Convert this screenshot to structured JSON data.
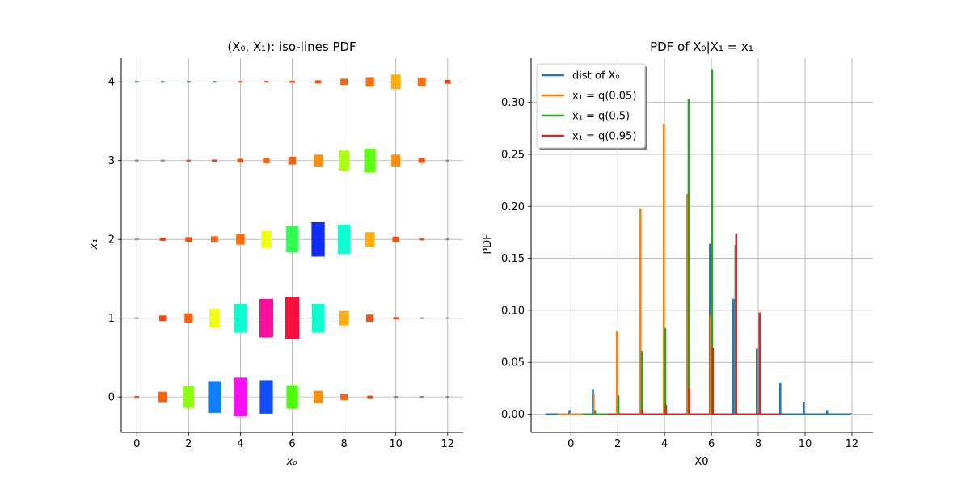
{
  "chart_data": [
    {
      "type": "heatmap",
      "title": "(X₀, X₁): iso-lines PDF",
      "xlabel": "x₀",
      "ylabel": "x₁",
      "xlim": [
        -0.6,
        12.6
      ],
      "ylim": [
        -0.45,
        4.3
      ],
      "xticks": [
        0,
        2,
        4,
        6,
        8,
        10,
        12
      ],
      "yticks": [
        0,
        1,
        2,
        3,
        4
      ],
      "grid": true,
      "cells": [
        {
          "x": 0,
          "y": 0,
          "v": 0.004,
          "color": "#ff3a00"
        },
        {
          "x": 1,
          "y": 0,
          "v": 0.06,
          "color": "#ff5a00"
        },
        {
          "x": 2,
          "y": 0,
          "v": 0.13,
          "color": "#88ff00"
        },
        {
          "x": 3,
          "y": 0,
          "v": 0.19,
          "color": "#0077ff"
        },
        {
          "x": 4,
          "y": 0,
          "v": 0.23,
          "color": "#ff00ff"
        },
        {
          "x": 5,
          "y": 0,
          "v": 0.2,
          "color": "#0044ff"
        },
        {
          "x": 6,
          "y": 0,
          "v": 0.14,
          "color": "#44ff00"
        },
        {
          "x": 7,
          "y": 0,
          "v": 0.07,
          "color": "#ff8800"
        },
        {
          "x": 8,
          "y": 0,
          "v": 0.035,
          "color": "#ff5a00"
        },
        {
          "x": 9,
          "y": 0,
          "v": 0.012,
          "color": "#ff3a00"
        },
        {
          "x": 10,
          "y": 0,
          "v": 0.002,
          "color": "#888888"
        },
        {
          "x": 11,
          "y": 0,
          "v": 0.001,
          "color": "#888888"
        },
        {
          "x": 12,
          "y": 0,
          "v": 0.001,
          "color": "#888888"
        },
        {
          "x": 0,
          "y": 1,
          "v": 0.002,
          "color": "#888888"
        },
        {
          "x": 1,
          "y": 1,
          "v": 0.03,
          "color": "#ff3a00"
        },
        {
          "x": 2,
          "y": 1,
          "v": 0.055,
          "color": "#ff5a00"
        },
        {
          "x": 3,
          "y": 1,
          "v": 0.11,
          "color": "#eeff00"
        },
        {
          "x": 4,
          "y": 1,
          "v": 0.17,
          "color": "#00ffcc"
        },
        {
          "x": 5,
          "y": 1,
          "v": 0.23,
          "color": "#ff0099"
        },
        {
          "x": 6,
          "y": 1,
          "v": 0.25,
          "color": "#ff0033"
        },
        {
          "x": 7,
          "y": 1,
          "v": 0.17,
          "color": "#00ffcc"
        },
        {
          "x": 8,
          "y": 1,
          "v": 0.085,
          "color": "#ffaa00"
        },
        {
          "x": 9,
          "y": 1,
          "v": 0.04,
          "color": "#ff4400"
        },
        {
          "x": 10,
          "y": 1,
          "v": 0.01,
          "color": "#ff3a00"
        },
        {
          "x": 11,
          "y": 1,
          "v": 0.002,
          "color": "#888888"
        },
        {
          "x": 12,
          "y": 1,
          "v": 0.001,
          "color": "#888888"
        },
        {
          "x": 0,
          "y": 2,
          "v": 0.001,
          "color": "#888888"
        },
        {
          "x": 1,
          "y": 2,
          "v": 0.015,
          "color": "#ff3a00"
        },
        {
          "x": 2,
          "y": 2,
          "v": 0.025,
          "color": "#ff4400"
        },
        {
          "x": 3,
          "y": 2,
          "v": 0.035,
          "color": "#ff5a00"
        },
        {
          "x": 4,
          "y": 2,
          "v": 0.06,
          "color": "#ff6600"
        },
        {
          "x": 5,
          "y": 2,
          "v": 0.1,
          "color": "#eeff00"
        },
        {
          "x": 6,
          "y": 2,
          "v": 0.155,
          "color": "#22ff44"
        },
        {
          "x": 7,
          "y": 2,
          "v": 0.205,
          "color": "#0022ff"
        },
        {
          "x": 8,
          "y": 2,
          "v": 0.175,
          "color": "#00ffcc"
        },
        {
          "x": 9,
          "y": 2,
          "v": 0.085,
          "color": "#ffaa00"
        },
        {
          "x": 10,
          "y": 2,
          "v": 0.03,
          "color": "#ff4400"
        },
        {
          "x": 11,
          "y": 2,
          "v": 0.008,
          "color": "#ff3a00"
        },
        {
          "x": 12,
          "y": 2,
          "v": 0.001,
          "color": "#888888"
        },
        {
          "x": 0,
          "y": 3,
          "v": 0.001,
          "color": "#888888"
        },
        {
          "x": 1,
          "y": 3,
          "v": 0.002,
          "color": "#888888"
        },
        {
          "x": 2,
          "y": 3,
          "v": 0.004,
          "color": "#ff3a00"
        },
        {
          "x": 3,
          "y": 3,
          "v": 0.01,
          "color": "#ff3a00"
        },
        {
          "x": 4,
          "y": 3,
          "v": 0.018,
          "color": "#ff4400"
        },
        {
          "x": 5,
          "y": 3,
          "v": 0.03,
          "color": "#ff5a00"
        },
        {
          "x": 6,
          "y": 3,
          "v": 0.045,
          "color": "#ff5a00"
        },
        {
          "x": 7,
          "y": 3,
          "v": 0.07,
          "color": "#ff8800"
        },
        {
          "x": 8,
          "y": 3,
          "v": 0.12,
          "color": "#aaff00"
        },
        {
          "x": 9,
          "y": 3,
          "v": 0.14,
          "color": "#55ff00"
        },
        {
          "x": 10,
          "y": 3,
          "v": 0.07,
          "color": "#ff8800"
        },
        {
          "x": 11,
          "y": 3,
          "v": 0.025,
          "color": "#ff4400"
        },
        {
          "x": 12,
          "y": 3,
          "v": 0.001,
          "color": "#888888"
        },
        {
          "x": 0,
          "y": 4,
          "v": 0.001,
          "color": "#4477aa"
        },
        {
          "x": 1,
          "y": 4,
          "v": 0.001,
          "color": "#4477aa"
        },
        {
          "x": 2,
          "y": 4,
          "v": 0.001,
          "color": "#4477aa"
        },
        {
          "x": 3,
          "y": 4,
          "v": 0.001,
          "color": "#4477aa"
        },
        {
          "x": 4,
          "y": 4,
          "v": 0.002,
          "color": "#ff3a00"
        },
        {
          "x": 5,
          "y": 4,
          "v": 0.004,
          "color": "#ff3a00"
        },
        {
          "x": 6,
          "y": 4,
          "v": 0.01,
          "color": "#ff3a00"
        },
        {
          "x": 7,
          "y": 4,
          "v": 0.016,
          "color": "#ff4400"
        },
        {
          "x": 8,
          "y": 4,
          "v": 0.035,
          "color": "#ff5a00"
        },
        {
          "x": 9,
          "y": 4,
          "v": 0.055,
          "color": "#ff6600"
        },
        {
          "x": 10,
          "y": 4,
          "v": 0.085,
          "color": "#ffaa00"
        },
        {
          "x": 11,
          "y": 4,
          "v": 0.05,
          "color": "#ff6600"
        },
        {
          "x": 12,
          "y": 4,
          "v": 0.02,
          "color": "#ff3a00"
        }
      ]
    },
    {
      "type": "bar",
      "title": "PDF of X₀|X₁ = x₁",
      "xlabel": "X0",
      "ylabel": "PDF",
      "xlim": [
        -1.7,
        12.9
      ],
      "ylim": [
        -0.0175,
        0.3425
      ],
      "xticks": [
        0,
        2,
        4,
        6,
        8,
        10,
        12
      ],
      "yticks": [
        0.0,
        0.05,
        0.1,
        0.15,
        0.2,
        0.25,
        0.3
      ],
      "ytick_labels": [
        "0.00",
        "0.05",
        "0.10",
        "0.15",
        "0.20",
        "0.25",
        "0.30"
      ],
      "grid": true,
      "legend_position": "top-left",
      "series": [
        {
          "name": "dist of X₀",
          "color": "#1f77b4",
          "offset": -0.06,
          "x": [
            -1,
            0,
            1,
            2,
            3,
            4,
            5,
            6,
            7,
            8,
            9,
            10,
            11,
            12
          ],
          "y": [
            0.0005,
            0.004,
            0.024,
            0.001,
            0.001,
            0.001,
            0.001,
            0.164,
            0.111,
            0.063,
            0.03,
            0.012,
            0.004,
            0.001
          ]
        },
        {
          "name": "x₁ = q(0.05)",
          "color": "#ff7f0e",
          "offset": -0.03,
          "x": [
            -0.5,
            0,
            1,
            2,
            3,
            4,
            5,
            6
          ],
          "y": [
            0.0005,
            0.001,
            0.019,
            0.08,
            0.198,
            0.279,
            0.212,
            0.095
          ]
        },
        {
          "name": "x₁ = q(0.5)",
          "color": "#2ca02c",
          "offset": 0.03,
          "x": [
            0.5,
            1,
            2,
            3,
            4,
            5,
            6,
            7
          ],
          "y": [
            0.0005,
            0.004,
            0.018,
            0.061,
            0.083,
            0.303,
            0.332,
            0.163
          ]
        },
        {
          "name": "x₁ = q(0.95)",
          "color": "#d62728",
          "offset": 0.06,
          "x": [
            1.5,
            2,
            3,
            4,
            5,
            6,
            7,
            8,
            9
          ],
          "y": [
            0.0005,
            0.001,
            0.004,
            0.009,
            0.025,
            0.064,
            0.174,
            0.098,
            0.0005
          ]
        }
      ]
    }
  ]
}
